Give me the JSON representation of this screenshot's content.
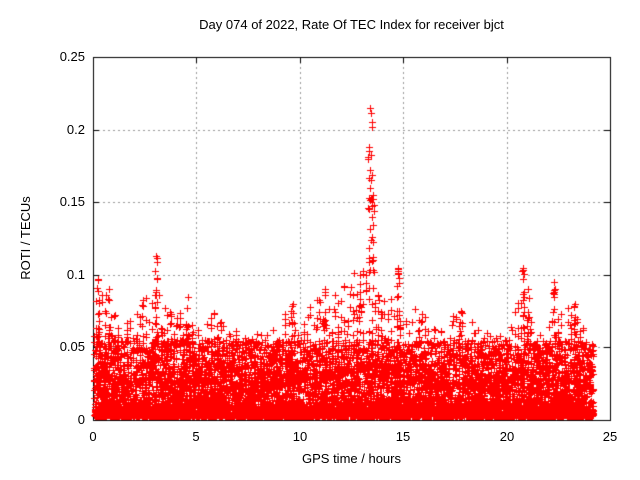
{
  "window": {
    "background": "#ffffff"
  },
  "chart_data": {
    "type": "scatter",
    "title": "Day 074 of 2022, Rate Of TEC Index for receiver bjct",
    "xlabel": "GPS time / hours",
    "ylabel": "ROTI / TECUs",
    "series_name": "ROTI",
    "xlim": [
      0,
      25
    ],
    "ylim": [
      0,
      0.25
    ],
    "xticks": [
      {
        "v": 0,
        "label": "0"
      },
      {
        "v": 5,
        "label": "5"
      },
      {
        "v": 10,
        "label": "10"
      },
      {
        "v": 15,
        "label": "15"
      },
      {
        "v": 20,
        "label": "20"
      },
      {
        "v": 25,
        "label": "25"
      }
    ],
    "yticks": [
      {
        "v": 0,
        "label": "0"
      },
      {
        "v": 0.05,
        "label": "0.05"
      },
      {
        "v": 0.1,
        "label": "0.1"
      },
      {
        "v": 0.15,
        "label": "0.15"
      },
      {
        "v": 0.2,
        "label": "0.2"
      },
      {
        "v": 0.25,
        "label": "0.25"
      }
    ],
    "grid": {
      "show": true,
      "color": "#999999",
      "dash": [
        2,
        3
      ]
    },
    "axis_color": "#000000",
    "text_color": "#000000",
    "marker": {
      "shape": "plus",
      "color": "#ff0000",
      "size": 7
    },
    "max_point": {
      "x_hours": 13.4,
      "roti": 0.215
    },
    "baseline_band": {
      "y_min": 0.003,
      "dense_top": 0.03,
      "typical_top": 0.05
    },
    "envelope": {
      "bin_hours": 0.5,
      "start_hour": 0,
      "max_roti": [
        0.08,
        0.09,
        0.075,
        0.065,
        0.08,
        0.085,
        0.09,
        0.08,
        0.075,
        0.085,
        0.06,
        0.075,
        0.075,
        0.06,
        0.065,
        0.055,
        0.06,
        0.065,
        0.065,
        0.08,
        0.08,
        0.085,
        0.09,
        0.09,
        0.095,
        0.1,
        0.11,
        0.11,
        0.09,
        0.09,
        0.065,
        0.08,
        0.08,
        0.065,
        0.06,
        0.075,
        0.078,
        0.065,
        0.06,
        0.065,
        0.055,
        0.08,
        0.09,
        0.065,
        0.07,
        0.07,
        0.08,
        0.07,
        0.06
      ]
    },
    "spikes": [
      {
        "x": 0.25,
        "top": 0.097,
        "base": 0.05,
        "n": 12
      },
      {
        "x": 0.75,
        "top": 0.09,
        "base": 0.05,
        "n": 9
      },
      {
        "x": 3.05,
        "top": 0.113,
        "base": 0.055,
        "n": 16
      },
      {
        "x": 4.6,
        "top": 0.085,
        "base": 0.05,
        "n": 8
      },
      {
        "x": 9.65,
        "top": 0.08,
        "base": 0.05,
        "n": 8
      },
      {
        "x": 11.2,
        "top": 0.09,
        "base": 0.05,
        "n": 9
      },
      {
        "x": 12.9,
        "top": 0.1,
        "base": 0.055,
        "n": 10
      },
      {
        "x": 13.4,
        "top": 0.215,
        "base": 0.1,
        "n": 28,
        "jitter": 0.13
      },
      {
        "x": 13.55,
        "top": 0.155,
        "base": 0.085,
        "n": 12
      },
      {
        "x": 14.75,
        "top": 0.105,
        "base": 0.06,
        "n": 12
      },
      {
        "x": 17.8,
        "top": 0.075,
        "base": 0.05,
        "n": 7
      },
      {
        "x": 20.8,
        "top": 0.105,
        "base": 0.06,
        "n": 14
      },
      {
        "x": 21.05,
        "top": 0.09,
        "base": 0.055,
        "n": 8
      },
      {
        "x": 22.3,
        "top": 0.095,
        "base": 0.055,
        "n": 12
      },
      {
        "x": 23.3,
        "top": 0.08,
        "base": 0.05,
        "n": 8
      }
    ],
    "generation": {
      "seed": 20220374,
      "x_min": 0.05,
      "x_max": 24.2,
      "y_floor": 0.003,
      "n_base": 9000,
      "base_exp": 3.0,
      "base_cap": 0.055,
      "n_peaks": 1700,
      "peak_min": 0.3,
      "peak_exp": 2.2,
      "x_quantize": 0.15,
      "spike_exp": 0.85
    }
  }
}
